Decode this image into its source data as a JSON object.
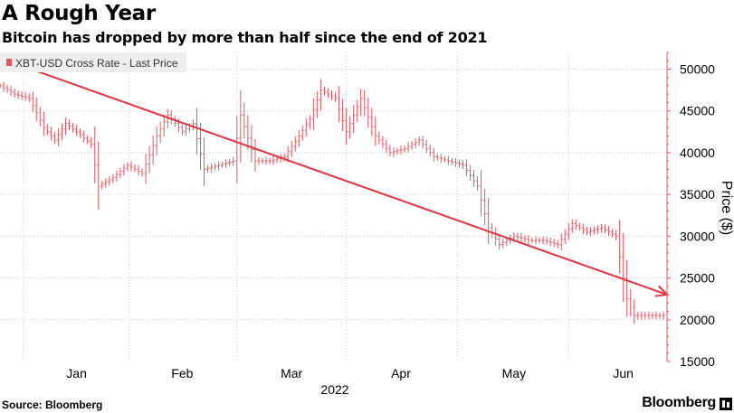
{
  "title": "A Rough Year",
  "subtitle": "Bitcoin has dropped by more than half since the end of 2021",
  "footer": {
    "source": "Source: Bloomberg",
    "brand": "Bloomberg"
  },
  "colors": {
    "series": "#e8555e",
    "trend": "#e8313f",
    "grid": "#d0d0d0",
    "axis": "#e8555e",
    "legend_bg": "#eeeeee"
  },
  "chart_data": {
    "type": "line",
    "style": "OHLC bars",
    "title": "A Rough Year",
    "subtitle": "Bitcoin has dropped by more than half since the end of 2021",
    "legend": {
      "placement": "top-left",
      "entries": [
        "XBT-USD Cross Rate - Last Price"
      ]
    },
    "ylabel": "Price ($)",
    "y_axis_side": "right",
    "ylim": [
      15000,
      52000
    ],
    "yticks": [
      15000,
      20000,
      25000,
      30000,
      35000,
      40000,
      45000,
      50000
    ],
    "ytick_labels": [
      "15000",
      "20000",
      "25000",
      "30000",
      "35000",
      "40000",
      "45000",
      "50000"
    ],
    "xlim": [
      "2021-12-26",
      "2022-06-27"
    ],
    "xtick_labels": [
      {
        "label": "Jan",
        "date": "2022-01-16"
      },
      {
        "label": "Feb",
        "date": "2022-02-14"
      },
      {
        "label": "Mar",
        "date": "2022-03-16"
      },
      {
        "label": "Apr",
        "date": "2022-04-15"
      },
      {
        "label": "May",
        "date": "2022-05-16"
      },
      {
        "label": "Jun",
        "date": "2022-06-15"
      }
    ],
    "year_label": "2022",
    "grid": {
      "horizontal": true,
      "vertical": true
    },
    "series": [
      {
        "name": "XBT-USD Cross Rate - Last Price",
        "x": [
          "2021-12-26",
          "2021-12-30",
          "2022-01-03",
          "2022-01-07",
          "2022-01-10",
          "2022-01-13",
          "2022-01-16",
          "2022-01-20",
          "2022-01-22",
          "2022-01-26",
          "2022-01-30",
          "2022-02-03",
          "2022-02-07",
          "2022-02-10",
          "2022-02-14",
          "2022-02-17",
          "2022-02-20",
          "2022-02-24",
          "2022-02-28",
          "2022-03-02",
          "2022-03-06",
          "2022-03-10",
          "2022-03-14",
          "2022-03-18",
          "2022-03-21",
          "2022-03-24",
          "2022-03-28",
          "2022-03-31",
          "2022-04-04",
          "2022-04-08",
          "2022-04-12",
          "2022-04-16",
          "2022-04-20",
          "2022-04-24",
          "2022-04-28",
          "2022-05-02",
          "2022-05-06",
          "2022-05-09",
          "2022-05-12",
          "2022-05-16",
          "2022-05-20",
          "2022-05-24",
          "2022-05-28",
          "2022-06-01",
          "2022-06-05",
          "2022-06-09",
          "2022-06-13",
          "2022-06-16",
          "2022-06-18",
          "2022-06-22",
          "2022-06-26"
        ],
        "y": [
          48000,
          47000,
          46500,
          43000,
          41500,
          43500,
          42500,
          41000,
          36000,
          37000,
          38500,
          37500,
          42000,
          44500,
          42500,
          43500,
          38000,
          38500,
          39000,
          44500,
          39000,
          39000,
          39500,
          42000,
          44000,
          47500,
          46500,
          42500,
          46500,
          42000,
          40000,
          40500,
          41500,
          39500,
          39000,
          38500,
          36000,
          31000,
          29000,
          30000,
          29500,
          29500,
          29000,
          31500,
          30500,
          31000,
          30000,
          22500,
          20500,
          20500,
          20500
        ]
      }
    ],
    "trendline": {
      "from": {
        "x": "2021-12-28",
        "y": 51000
      },
      "to": {
        "x": "2022-06-27",
        "y": 23000
      },
      "arrow": true
    }
  }
}
